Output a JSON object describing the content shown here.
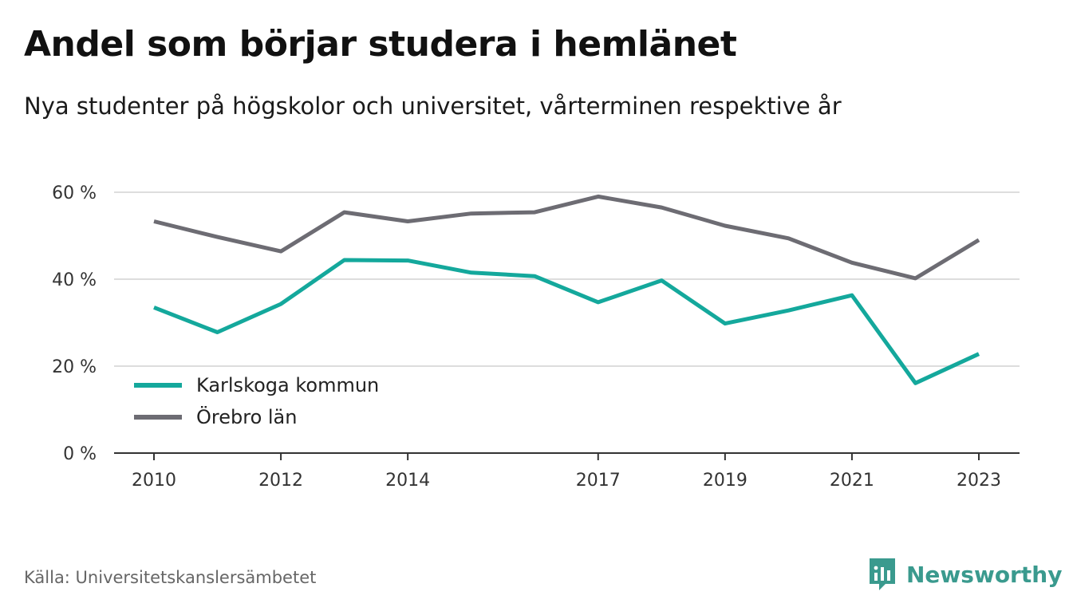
{
  "header": {
    "title": "Andel som börjar studera i hemlänet",
    "subtitle": "Nya studenter på högskolor och universitet, vårterminen respektive år"
  },
  "footer": {
    "source": "Källa: Universitetskanslersämbetet",
    "brand": "Newsworthy"
  },
  "colors": {
    "karlskoga": "#14a89c",
    "orebro": "#6d6c73",
    "grid": "#dddddd",
    "axis": "#333333",
    "brand": "#3a9a8e"
  },
  "chart_data": {
    "type": "line",
    "title": "Andel som börjar studera i hemlänet",
    "subtitle": "Nya studenter på högskolor och universitet, vårterminen respektive år",
    "x": [
      2010,
      2011,
      2012,
      2013,
      2014,
      2015,
      2016,
      2017,
      2018,
      2019,
      2020,
      2021,
      2022,
      2023
    ],
    "x_tick_labels": [
      "2010",
      "2012",
      "2014",
      "2017",
      "2019",
      "2021",
      "2023"
    ],
    "y_ticks": [
      0,
      20,
      40,
      60
    ],
    "y_tick_labels": [
      "0 %",
      "20 %",
      "40 %",
      "60 %"
    ],
    "ylim": [
      0,
      60
    ],
    "grid": true,
    "legend_position": "bottom-left",
    "series": [
      {
        "name": "Karlskoga kommun",
        "color": "#14a89c",
        "values": [
          33.5,
          27.8,
          34.3,
          44.4,
          44.3,
          41.5,
          40.7,
          34.7,
          39.7,
          29.8,
          32.8,
          36.3,
          16.1,
          22.8
        ]
      },
      {
        "name": "Örebro län",
        "color": "#6d6c73",
        "values": [
          53.3,
          49.7,
          46.4,
          55.4,
          53.3,
          55.1,
          55.4,
          59.0,
          56.5,
          52.3,
          49.4,
          43.8,
          40.2,
          49.0
        ]
      }
    ]
  }
}
